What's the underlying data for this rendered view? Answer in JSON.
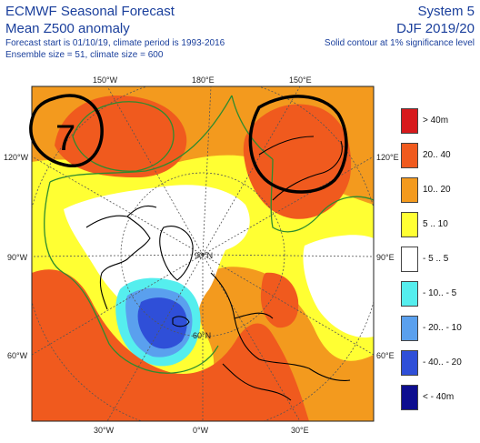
{
  "header": {
    "title_line1": "ECMWF Seasonal Forecast",
    "title_line2": "Mean Z500 anomaly",
    "info_line1": "Forecast start is 01/10/19, climate period is 1993-2016",
    "info_line2": "Ensemble size = 51, climate size = 600",
    "system": "System 5",
    "season": "DJF 2019/20",
    "significance_note": "Solid contour at 1% significance level"
  },
  "map": {
    "lon_labels_top": [
      "150°W",
      "180°E",
      "150°E"
    ],
    "lon_labels_bottom": [
      "30°W",
      "0°W",
      "30°E"
    ],
    "lat_labels_left": [
      "120°W",
      "90°W",
      "60°W"
    ],
    "lat_labels_right": [
      "120°E",
      "90°E",
      "60°E"
    ],
    "inner_labels": [
      "90°N",
      "60°N"
    ],
    "annotation_number": "7",
    "colors": {
      "ocean_bg": "#f39a1e",
      "strong_positive": "#f05a1e",
      "mild_positive": "#ffff33",
      "neutral": "#ffffff",
      "weak_negative": "#55eeee",
      "moderate_negative": "#5aa0ee",
      "strong_negative": "#2f4fd8",
      "significance_contour": "#2e8b2e",
      "annotation_ink": "#000000"
    }
  },
  "legend": [
    {
      "label": ">  40m",
      "color": "#d7191c"
    },
    {
      "label": "20.. 40",
      "color": "#f05a1e"
    },
    {
      "label": "10.. 20",
      "color": "#f39a1e"
    },
    {
      "label": "5 .. 10",
      "color": "#ffff33"
    },
    {
      "label": "- 5 .. 5",
      "color": "#ffffff"
    },
    {
      "label": "- 10.. - 5",
      "color": "#55eeee"
    },
    {
      "label": "- 20.. - 10",
      "color": "#5aa0ee"
    },
    {
      "label": "- 40.. - 20",
      "color": "#2f4fd8"
    },
    {
      "label": "< - 40m",
      "color": "#0d0d8f"
    }
  ]
}
